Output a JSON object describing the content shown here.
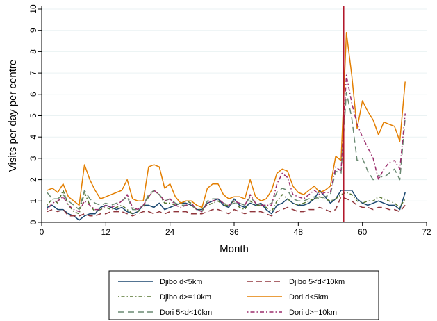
{
  "chart_data": {
    "type": "line",
    "xlabel": "Month",
    "ylabel": "Visits per day per centre",
    "xlim": [
      0,
      72
    ],
    "ylim": [
      0,
      10
    ],
    "x_ticks": [
      0,
      12,
      24,
      36,
      48,
      60,
      72
    ],
    "y_ticks": [
      0,
      1,
      2,
      3,
      4,
      5,
      6,
      7,
      8,
      9,
      10
    ],
    "grid": "horizontal",
    "legend_position": "bottom",
    "reference_line": {
      "x": 56.5,
      "color": "#b2182b"
    },
    "x": [
      1,
      2,
      3,
      4,
      5,
      6,
      7,
      8,
      9,
      10,
      11,
      12,
      13,
      14,
      15,
      16,
      17,
      18,
      19,
      20,
      21,
      22,
      23,
      24,
      25,
      26,
      27,
      28,
      29,
      30,
      31,
      32,
      33,
      34,
      35,
      36,
      37,
      38,
      39,
      40,
      41,
      42,
      43,
      44,
      45,
      46,
      47,
      48,
      49,
      50,
      51,
      52,
      53,
      54,
      55,
      56,
      57,
      58,
      59,
      60,
      61,
      62,
      63,
      64,
      65,
      66,
      67,
      68
    ],
    "series": [
      {
        "name": "Djibo d<5km",
        "color": "#1a476f",
        "dash": "none",
        "values": [
          0.7,
          0.8,
          0.6,
          0.6,
          0.4,
          0.3,
          0.1,
          0.3,
          0.4,
          0.4,
          0.7,
          0.8,
          0.7,
          0.6,
          0.7,
          0.5,
          0.4,
          0.5,
          0.8,
          0.8,
          0.7,
          0.9,
          0.6,
          0.7,
          0.8,
          0.9,
          0.9,
          0.8,
          0.6,
          0.6,
          0.9,
          1.0,
          1.1,
          0.8,
          0.7,
          1.1,
          0.8,
          0.7,
          0.9,
          0.8,
          0.9,
          0.6,
          0.4,
          0.8,
          0.9,
          1.1,
          0.9,
          0.8,
          0.8,
          0.9,
          1.1,
          1.5,
          1.2,
          0.9,
          1.1,
          1.5,
          1.5,
          1.5,
          1.1,
          0.9,
          0.8,
          0.9,
          1.0,
          0.9,
          0.8,
          0.8,
          0.6,
          1.4
        ]
      },
      {
        "name": "Djibo 5<d<10km",
        "color": "#90353b",
        "dash": "8,5",
        "values": [
          0.5,
          0.6,
          0.5,
          0.6,
          0.3,
          0.3,
          0.3,
          0.4,
          0.3,
          0.3,
          0.4,
          0.4,
          0.5,
          0.5,
          0.5,
          0.4,
          0.3,
          0.4,
          0.5,
          0.5,
          0.4,
          0.5,
          0.4,
          0.5,
          0.5,
          0.5,
          0.5,
          0.4,
          0.4,
          0.4,
          0.5,
          0.6,
          0.6,
          0.5,
          0.4,
          0.6,
          0.5,
          0.4,
          0.5,
          0.5,
          0.5,
          0.4,
          0.3,
          0.5,
          0.6,
          0.7,
          0.6,
          0.5,
          0.5,
          0.6,
          0.6,
          0.7,
          0.6,
          0.5,
          0.6,
          1.2,
          1.1,
          1.0,
          0.8,
          0.7,
          0.7,
          0.6,
          0.7,
          0.7,
          0.6,
          0.6,
          0.5,
          0.8
        ]
      },
      {
        "name": "Djibo d>=10km",
        "color": "#55752f",
        "dash": "1.5,3,5,3",
        "values": [
          0.8,
          1.1,
          0.9,
          1.5,
          0.8,
          0.5,
          0.4,
          1.4,
          0.8,
          0.5,
          0.6,
          0.7,
          0.6,
          0.7,
          0.8,
          0.6,
          0.4,
          0.5,
          0.7,
          1.2,
          1.5,
          1.3,
          0.9,
          0.9,
          0.8,
          0.9,
          1.0,
          0.9,
          0.6,
          0.6,
          0.8,
          0.9,
          1.0,
          0.8,
          0.8,
          1.0,
          0.7,
          0.6,
          1.0,
          0.8,
          0.8,
          0.7,
          0.5,
          1.0,
          1.3,
          1.1,
          0.9,
          0.8,
          0.9,
          1.0,
          1.1,
          1.2,
          1.1,
          1.0,
          1.1,
          1.3,
          1.4,
          1.3,
          1.0,
          0.9,
          1.0,
          1.0,
          1.2,
          1.1,
          1.0,
          0.9,
          0.7,
          1.1
        ]
      },
      {
        "name": "Dori d<5km",
        "color": "#e37e00",
        "dash": "none",
        "values": [
          1.5,
          1.6,
          1.4,
          1.8,
          1.2,
          1.0,
          0.8,
          2.7,
          2.0,
          1.5,
          1.1,
          1.2,
          1.3,
          1.4,
          1.5,
          2.0,
          1.1,
          1.0,
          1.0,
          2.6,
          2.7,
          2.6,
          1.6,
          1.8,
          1.2,
          0.9,
          1.0,
          1.0,
          0.8,
          0.7,
          1.6,
          1.8,
          1.8,
          1.3,
          1.1,
          1.2,
          1.2,
          1.1,
          2.0,
          1.2,
          1.0,
          1.1,
          1.5,
          2.3,
          2.5,
          2.4,
          1.7,
          1.4,
          1.3,
          1.5,
          1.7,
          1.4,
          1.5,
          1.7,
          3.1,
          2.9,
          8.9,
          6.9,
          4.4,
          5.7,
          5.2,
          4.8,
          4.1,
          4.7,
          4.6,
          4.5,
          3.8,
          6.6
        ]
      },
      {
        "name": "Dori 5<d<10km",
        "color": "#6a8a72",
        "dash": "9,5",
        "values": [
          1.4,
          1.1,
          1.1,
          1.3,
          1.0,
          0.8,
          0.6,
          1.5,
          1.1,
          0.9,
          0.8,
          0.9,
          0.8,
          0.9,
          1.0,
          1.2,
          0.6,
          0.6,
          0.8,
          1.3,
          1.5,
          1.3,
          1.0,
          1.1,
          0.9,
          0.8,
          0.8,
          0.8,
          0.6,
          0.5,
          1.0,
          1.1,
          1.1,
          0.9,
          0.8,
          0.9,
          0.9,
          0.8,
          1.2,
          0.9,
          0.8,
          0.8,
          0.9,
          1.4,
          1.6,
          1.5,
          1.1,
          1.0,
          1.0,
          1.1,
          1.2,
          1.1,
          1.2,
          1.3,
          2.4,
          2.3,
          6.1,
          4.9,
          2.9,
          3.0,
          2.4,
          2.0,
          2.2,
          2.1,
          2.3,
          2.5,
          2.0,
          4.9
        ]
      },
      {
        "name": "Dori d>=10km",
        "color": "#9b2d6c",
        "dash": "1.5,3,6,3",
        "values": [
          0.6,
          0.9,
          1.0,
          1.2,
          0.8,
          0.6,
          0.5,
          1.0,
          0.8,
          0.6,
          0.6,
          0.8,
          0.7,
          0.8,
          1.0,
          1.3,
          0.7,
          0.6,
          0.8,
          1.2,
          1.5,
          1.3,
          1.0,
          1.1,
          0.8,
          0.7,
          0.8,
          0.9,
          0.6,
          0.5,
          0.9,
          1.0,
          1.1,
          0.9,
          0.8,
          1.0,
          0.9,
          0.8,
          1.3,
          0.9,
          0.8,
          0.8,
          0.8,
          1.8,
          2.3,
          2.1,
          1.3,
          1.2,
          1.1,
          1.3,
          1.5,
          1.3,
          1.4,
          1.4,
          2.6,
          2.4,
          6.9,
          5.6,
          4.6,
          4.0,
          3.5,
          3.0,
          2.0,
          2.5,
          2.8,
          2.9,
          2.5,
          5.1
        ]
      }
    ]
  }
}
